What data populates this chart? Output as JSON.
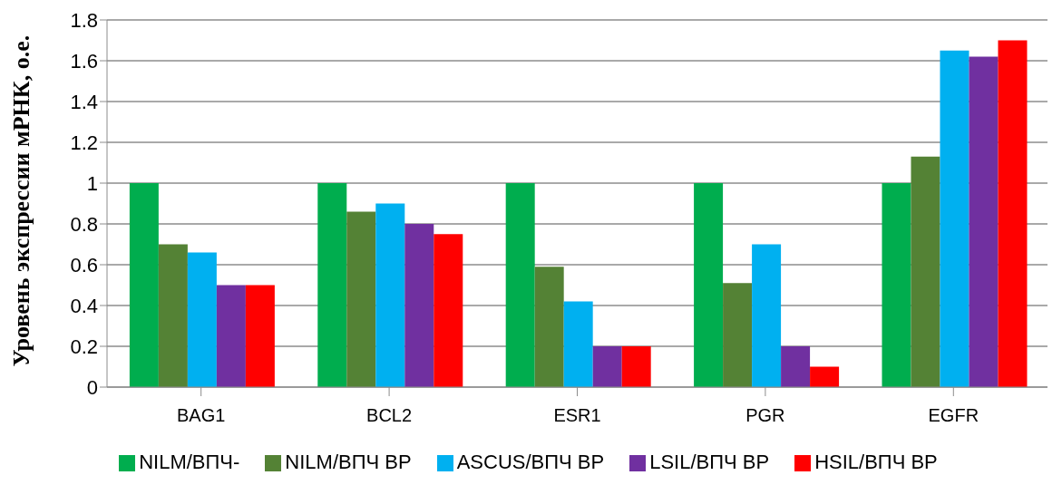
{
  "chart_data": {
    "type": "bar",
    "ylabel": "Уровень экспрессии мРНК, о.е.",
    "categories": [
      "BAG1",
      "BCL2",
      "ESR1",
      "PGR",
      "EGFR"
    ],
    "series": [
      {
        "name": "NILM/ВПЧ-",
        "color": "#00ad4e",
        "values": [
          1,
          1,
          1,
          1,
          1
        ]
      },
      {
        "name": "NILM/ВПЧ ВР",
        "color": "#548235",
        "values": [
          0.7,
          0.86,
          0.59,
          0.51,
          1.13
        ]
      },
      {
        "name": "ASCUS/ВПЧ ВР",
        "color": "#00b0f0",
        "values": [
          0.66,
          0.9,
          0.42,
          0.7,
          1.65
        ]
      },
      {
        "name": "LSIL/ВПЧ ВР",
        "color": "#7030a0",
        "values": [
          0.5,
          0.8,
          0.2,
          0.2,
          1.62
        ]
      },
      {
        "name": "HSIL/ВПЧ ВР",
        "color": "#ff0000",
        "values": [
          0.5,
          0.75,
          0.2,
          0.1,
          1.7
        ]
      }
    ],
    "ylim": [
      0,
      1.8
    ],
    "yticks": [
      0,
      0.2,
      0.4,
      0.6,
      0.8,
      1,
      1.2,
      1.4,
      1.6,
      1.8
    ],
    "grid": "y",
    "legend": "bottom"
  }
}
